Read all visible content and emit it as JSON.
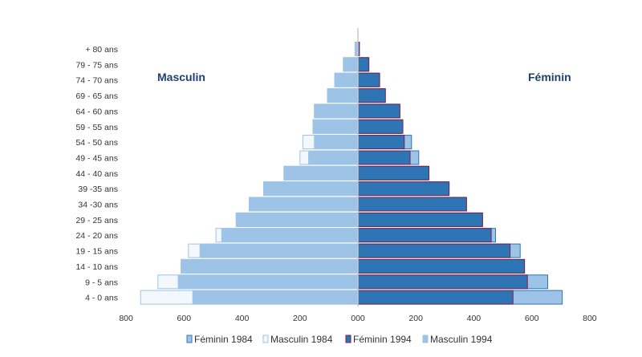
{
  "chart_data": {
    "type": "bar",
    "orientation": "horizontal",
    "layout": "population-pyramid",
    "side_labels": {
      "left": "Masculin",
      "right": "Féminin"
    },
    "categories": [
      "+ 80 ans",
      "79 - 75 ans",
      "74 - 70 ans",
      "69 - 65 ans",
      "64 - 60 ans",
      "59 - 55 ans",
      "54 - 50 ans",
      "49 - 45 ans",
      "44 - 40 ans",
      "39 -35 ans",
      "34 -30 ans",
      "29 - 25 ans",
      "24 - 20 ans",
      "19 - 15 ans",
      "14 - 10 ans",
      "9 - 5 ans",
      "4 - 0 ans"
    ],
    "x_ticks": [
      "800",
      "600",
      "400",
      "200",
      "000",
      "200",
      "400",
      "600",
      "800"
    ],
    "xlim": [
      -800,
      800
    ],
    "series": [
      {
        "name": "Féminin 1984",
        "side": "right",
        "color": "#9dc3e6",
        "border": "#2e75b6",
        "values": [
          5,
          35,
          70,
          90,
          140,
          150,
          185,
          210,
          240,
          310,
          370,
          430,
          475,
          560,
          575,
          655,
          705
        ]
      },
      {
        "name": "Masculin 1984",
        "side": "left",
        "color": "#f2f8fd",
        "border": "#9dc3e6",
        "values": [
          10,
          50,
          80,
          105,
          150,
          155,
          190,
          200,
          255,
          325,
          375,
          420,
          490,
          585,
          610,
          690,
          750
        ]
      },
      {
        "name": "Féminin 1994",
        "side": "right",
        "color": "#2e75b6",
        "border": "#7a1f4d",
        "values": [
          5,
          38,
          75,
          95,
          145,
          155,
          160,
          180,
          245,
          315,
          375,
          430,
          460,
          525,
          575,
          585,
          535
        ]
      },
      {
        "name": "Masculin 1994",
        "side": "left",
        "color": "#9dc3e6",
        "border": "#9dc3e6",
        "values": [
          10,
          50,
          80,
          105,
          150,
          155,
          150,
          170,
          255,
          325,
          375,
          420,
          470,
          545,
          610,
          620,
          570
        ]
      }
    ],
    "legend_position": "bottom",
    "grid": false
  }
}
